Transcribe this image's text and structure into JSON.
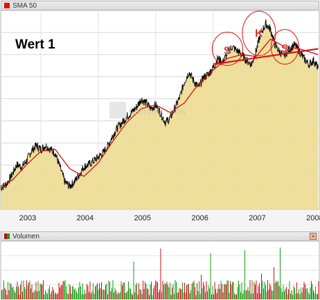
{
  "header": {
    "indicator_label": "SMA 50"
  },
  "volume_header": {
    "label": "Volumen",
    "close_symbol": "×"
  },
  "chart_data": [
    {
      "type": "area",
      "title": "Wert 1",
      "watermark": "CortalCons",
      "x_tick_labels": [
        "2003",
        "2004",
        "2005",
        "2006",
        "2007",
        "2008"
      ],
      "xlim": [
        2002.8,
        2008.35
      ],
      "ylim": [
        0,
        100
      ],
      "grid": true,
      "series": [
        {
          "name": "price",
          "color": "#000000",
          "fill": "#f3e4a6",
          "x": [
            2002.8,
            2002.9,
            2003.0,
            2003.08,
            2003.17,
            2003.25,
            2003.33,
            2003.42,
            2003.5,
            2003.58,
            2003.67,
            2003.75,
            2003.83,
            2003.92,
            2004.0,
            2004.08,
            2004.17,
            2004.25,
            2004.33,
            2004.42,
            2004.5,
            2004.58,
            2004.67,
            2004.75,
            2004.83,
            2004.92,
            2005.0,
            2005.08,
            2005.17,
            2005.25,
            2005.33,
            2005.42,
            2005.5,
            2005.58,
            2005.67,
            2005.75,
            2005.83,
            2005.92,
            2006.0,
            2006.08,
            2006.17,
            2006.25,
            2006.33,
            2006.42,
            2006.5,
            2006.58,
            2006.67,
            2006.75,
            2006.83,
            2006.92,
            2007.0,
            2007.08,
            2007.17,
            2007.25,
            2007.33,
            2007.42,
            2007.5,
            2007.58,
            2007.67,
            2007.75,
            2007.83,
            2007.92,
            2008.0,
            2008.08,
            2008.17,
            2008.25,
            2008.33
          ],
          "values": [
            11,
            13,
            18,
            23,
            22,
            25,
            30,
            33,
            31,
            33,
            31,
            29,
            22,
            14,
            12,
            14,
            18,
            22,
            23,
            25,
            27,
            29,
            33,
            38,
            42,
            45,
            48,
            50,
            53,
            57,
            55,
            52,
            54,
            50,
            45,
            47,
            52,
            58,
            66,
            71,
            66,
            63,
            68,
            70,
            73,
            78,
            76,
            81,
            84,
            82,
            80,
            77,
            75,
            82,
            91,
            96,
            93,
            85,
            81,
            80,
            83,
            85,
            82,
            78,
            75,
            77,
            73
          ]
        },
        {
          "name": "SMA 50",
          "color": "#d01010",
          "x": [
            2002.8,
            2003.0,
            2003.25,
            2003.5,
            2003.75,
            2004.0,
            2004.25,
            2004.5,
            2004.75,
            2005.0,
            2005.25,
            2005.5,
            2005.75,
            2006.0,
            2006.25,
            2006.5,
            2006.75,
            2007.0,
            2007.25,
            2007.5,
            2007.75,
            2008.0,
            2008.33
          ],
          "values": [
            12,
            15,
            23,
            30,
            31,
            21,
            17,
            24,
            35,
            45,
            52,
            54,
            50,
            55,
            65,
            72,
            78,
            80,
            79,
            88,
            84,
            83,
            80
          ]
        }
      ],
      "annotations": [
        {
          "label": "S",
          "x": 2006.75,
          "y": 83
        },
        {
          "label": "K",
          "x": 2007.3,
          "y": 92
        },
        {
          "label": "S",
          "x": 2007.75,
          "y": 84
        }
      ],
      "trendline": {
        "x": [
          2006.5,
          2008.33
        ],
        "values": [
          75,
          83
        ]
      }
    },
    {
      "type": "bar",
      "title": "Volumen",
      "xlim": [
        2002.8,
        2008.35
      ],
      "colors": [
        "#c41212",
        "#129c12"
      ],
      "values": []
    }
  ]
}
